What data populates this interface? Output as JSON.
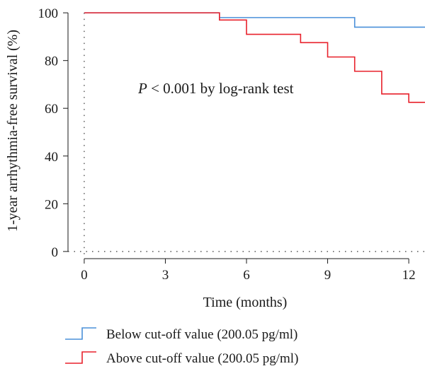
{
  "chart_data": {
    "type": "line",
    "step": true,
    "xlabel": "Time (months)",
    "ylabel": "1-year arrhythmia-free survival (%)",
    "xlim": [
      -0.6,
      12.6
    ],
    "ylim": [
      -3,
      103
    ],
    "xticks": [
      0,
      3,
      6,
      9,
      12
    ],
    "yticks": [
      0,
      20,
      40,
      60,
      80,
      100
    ],
    "annotation": {
      "prefix": "P",
      "text": " < 0.001 by log-rank test"
    },
    "reference_lines": {
      "x": 0,
      "y": 0,
      "style": "dotted"
    },
    "legend_position": "bottom",
    "series": [
      {
        "name": "Below cut-off value (200.05 pg/ml)",
        "color": "#4a90d9",
        "x": [
          0,
          5,
          10,
          12.6
        ],
        "y": [
          100,
          98,
          94,
          94
        ]
      },
      {
        "name": "Above cut-off value (200.05 pg/ml)",
        "color": "#e8212b",
        "x": [
          0,
          5,
          6,
          8,
          9,
          10,
          11,
          12,
          12.6
        ],
        "y": [
          100,
          97,
          91,
          87.5,
          81.5,
          75.5,
          66,
          62.5,
          62.5
        ]
      }
    ]
  }
}
